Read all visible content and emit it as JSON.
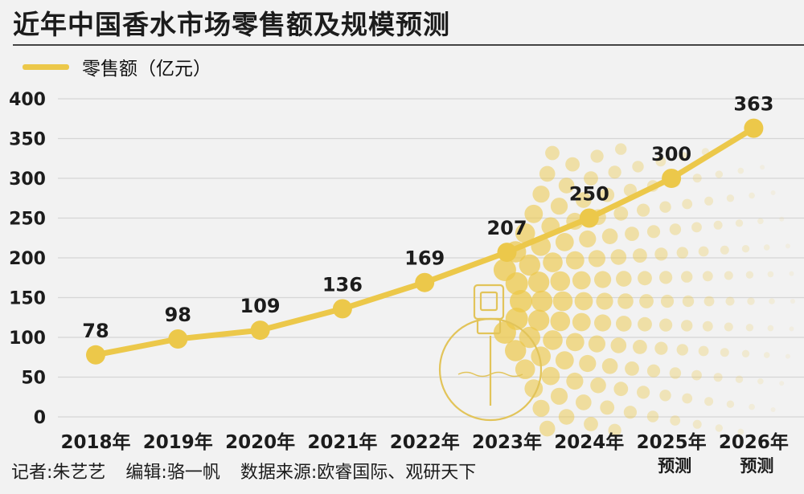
{
  "title": "近年中国香水市场零售额及规模预测",
  "legend": {
    "label": "零售额（亿元）"
  },
  "footer": {
    "reporter": "记者:朱艺艺",
    "editor": "编辑:骆一帆",
    "source": "数据来源:欧睿国际、观研天下"
  },
  "colors": {
    "line": "#ecc84a",
    "grid": "#d6d6d6",
    "text": "#1c1c1c"
  },
  "chart_data": {
    "type": "line",
    "title": "近年中国香水市场零售额及规模预测",
    "categories": [
      "2018年",
      "2019年",
      "2020年",
      "2021年",
      "2022年",
      "2023年",
      "2024年",
      "2025年",
      "2026年"
    ],
    "category_notes": [
      "",
      "",
      "",
      "",
      "",
      "",
      "",
      "预测",
      "预测"
    ],
    "series": [
      {
        "name": "零售额（亿元）",
        "values": [
          78,
          98,
          109,
          136,
          169,
          207,
          250,
          300,
          363
        ]
      }
    ],
    "data_labels": [
      "78",
      "98",
      "109",
      "136",
      "169",
      "207",
      "250",
      "300",
      "363"
    ],
    "yticks": [
      0,
      50,
      100,
      150,
      200,
      250,
      300,
      350,
      400
    ],
    "ylim": [
      0,
      400
    ],
    "grid": true,
    "xlabel": "",
    "ylabel": "",
    "legend": "top-left"
  }
}
